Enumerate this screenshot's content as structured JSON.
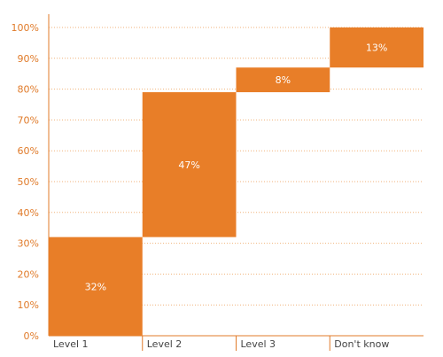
{
  "chart_data": {
    "type": "bar",
    "subtype": "waterfall",
    "title": "",
    "xlabel": "",
    "ylabel": "",
    "categories": [
      "Level 1",
      "Level 2",
      "Level 3",
      "Don't know"
    ],
    "values": [
      32,
      47,
      8,
      13
    ],
    "value_labels": [
      "32%",
      "47%",
      "8%",
      "13%"
    ],
    "ylim": [
      0,
      100
    ],
    "y_ticks": [
      0,
      10,
      20,
      30,
      40,
      50,
      60,
      70,
      80,
      90,
      100
    ],
    "y_tick_labels": [
      "0%",
      "10%",
      "20%",
      "30%",
      "40%",
      "50%",
      "60%",
      "70%",
      "80%",
      "90%",
      "100%"
    ],
    "grid": "dotted horizontal",
    "legend": "none",
    "colors": {
      "bar": "#e87e28",
      "grid": "#f0b27a",
      "axis": "#e07b2a",
      "tick_text": "#e07b2a",
      "category_text": "#444444",
      "label_inside": "#ffffff",
      "label_outside": "#333333"
    }
  }
}
